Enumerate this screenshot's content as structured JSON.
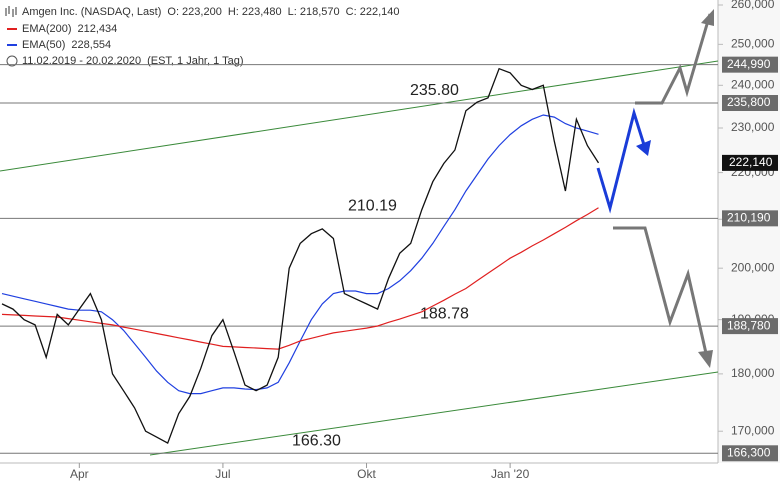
{
  "chart_data": {
    "type": "line",
    "title": "Amgen Inc. (NASDAQ, Last)",
    "ohlc": [
      "O: 223,200",
      "H: 223,480",
      "L: 218,570",
      "C: 222,140"
    ],
    "period": "11.02.2019 - 20.02.2020",
    "period_note": "(EST, 1 Jahr, 1 Tag)",
    "log_scale": true,
    "ylim": [
      164700,
      261300
    ],
    "yticks": [
      {
        "value": 170000,
        "label": "170,000"
      },
      {
        "value": 180000,
        "label": "180,000"
      },
      {
        "value": 190000,
        "label": "190,000"
      },
      {
        "value": 200000,
        "label": "200,000"
      },
      {
        "value": 210000,
        "label": "210,000"
      },
      {
        "value": 220000,
        "label": "220,000"
      },
      {
        "value": 230000,
        "label": "230,000"
      },
      {
        "value": 240000,
        "label": "240,000"
      },
      {
        "value": 250000,
        "label": "250,000"
      },
      {
        "value": 260000,
        "label": "260,000"
      }
    ],
    "levels": [
      {
        "value": 244990,
        "label": "244,990"
      },
      {
        "value": 235800,
        "label": "235,800"
      },
      {
        "value": 210190,
        "label": "210,190"
      },
      {
        "value": 188780,
        "label": "188,780"
      },
      {
        "value": 166300,
        "label": "166,300"
      }
    ],
    "annotations": [
      {
        "value": 235800,
        "label": "235.80"
      },
      {
        "value": 210190,
        "label": "210.19"
      },
      {
        "value": 188780,
        "label": "188.78"
      },
      {
        "value": 166300,
        "label": "166.30"
      }
    ],
    "last": {
      "value": 222140,
      "label": "222,140"
    },
    "categories": [
      null,
      null,
      null,
      null,
      null,
      null,
      null,
      "Apr",
      null,
      null,
      null,
      null,
      null,
      null,
      null,
      null,
      null,
      null,
      null,
      null,
      "Jul",
      null,
      null,
      null,
      null,
      null,
      null,
      null,
      null,
      null,
      null,
      null,
      null,
      "Okt",
      null,
      null,
      null,
      null,
      null,
      null,
      null,
      null,
      null,
      null,
      null,
      null,
      "Jan '20",
      null,
      null,
      null,
      null,
      null,
      null,
      null,
      null,
      null,
      null,
      null,
      null,
      null,
      null,
      null,
      null,
      null,
      null
    ],
    "series": [
      {
        "name": "Amgen Inc. (NASDAQ, Last)",
        "color": "#111111",
        "values": [
          193000,
          192000,
          190000,
          189000,
          183000,
          191000,
          189000,
          192000,
          195000,
          190000,
          180000,
          177000,
          174000,
          170000,
          169000,
          168000,
          173000,
          176000,
          181000,
          187000,
          190000,
          184000,
          178000,
          177000,
          178000,
          183000,
          200000,
          205000,
          207000,
          208000,
          206000,
          195000,
          194000,
          193000,
          192000,
          198000,
          203000,
          205000,
          212000,
          218000,
          222000,
          225000,
          234000,
          236000,
          237000,
          244000,
          243000,
          240000,
          239000,
          240000,
          227000,
          216000,
          232000,
          226000,
          222140,
          null,
          null,
          null,
          null,
          null,
          null,
          null,
          null,
          null,
          null
        ]
      },
      {
        "name": "EMA(200)",
        "value_label": "212,434",
        "color": "#e02020",
        "values": [
          191000,
          190900,
          190800,
          190700,
          190600,
          190500,
          190200,
          189900,
          189600,
          189300,
          189000,
          188600,
          188200,
          187800,
          187400,
          187000,
          186600,
          186200,
          185800,
          185400,
          185000,
          184900,
          184800,
          184700,
          184600,
          184500,
          185200,
          186000,
          186500,
          187000,
          187500,
          187800,
          188100,
          188400,
          188800,
          189500,
          190100,
          190800,
          191500,
          192600,
          193700,
          194900,
          196000,
          197500,
          199000,
          200500,
          202000,
          203200,
          204500,
          205700,
          207000,
          208300,
          209700,
          211000,
          212434,
          null,
          null,
          null,
          null,
          null,
          null,
          null,
          null,
          null,
          null
        ]
      },
      {
        "name": "EMA(50)",
        "value_label": "228,554",
        "color": "#2040e0",
        "values": [
          195000,
          194500,
          194000,
          193500,
          193000,
          192500,
          192000,
          191800,
          191800,
          191500,
          190000,
          188000,
          185500,
          183000,
          180500,
          178500,
          177000,
          176500,
          176500,
          177000,
          177500,
          177500,
          177300,
          177200,
          177500,
          178500,
          182000,
          186000,
          190000,
          193000,
          195000,
          195500,
          195500,
          195000,
          195000,
          196000,
          197500,
          199500,
          202000,
          205000,
          208500,
          212000,
          216000,
          219500,
          223000,
          226000,
          228500,
          230500,
          232000,
          233000,
          232500,
          231000,
          230000,
          229300,
          228554,
          null,
          null,
          null,
          null,
          null,
          null,
          null,
          null,
          null,
          null
        ]
      }
    ]
  }
}
